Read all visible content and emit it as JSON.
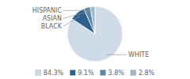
{
  "chart_data": {
    "type": "pie",
    "categories": [
      "WHITE",
      "BLACK",
      "ASIAN",
      "HISPANIC"
    ],
    "values": [
      84.3,
      9.1,
      3.8,
      2.8
    ],
    "value_labels": [
      "84.3%",
      "9.1%",
      "3.8%",
      "2.8%"
    ],
    "colors": [
      "#cfdce8",
      "#2e5f8a",
      "#5688aa",
      "#a0b8cc"
    ],
    "legend": "bottom"
  }
}
